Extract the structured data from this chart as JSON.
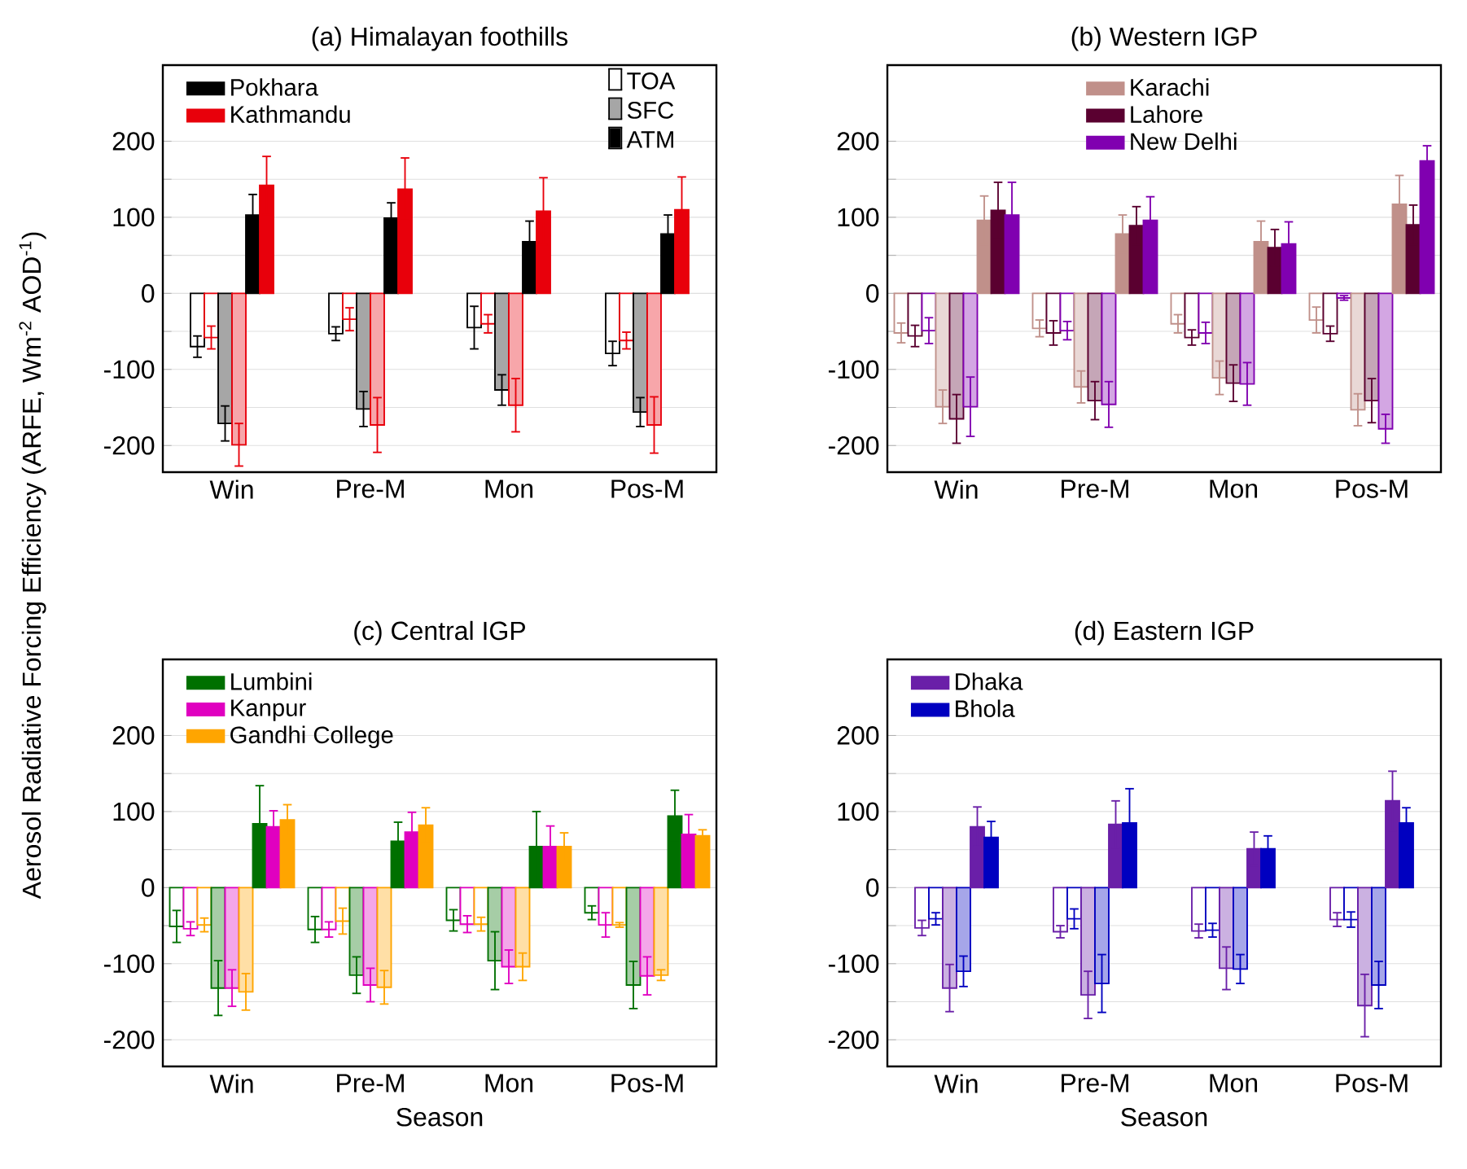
{
  "chart_data": [
    {
      "type": "bar",
      "title": "(a) Himalayan foothills",
      "ylabel": "Aerosol Radiative Forcing Efficiency (ARFE, Wm$^{-2}$ AOD$^{-1}$)",
      "categories": [
        "Win",
        "Pre-M",
        "Mon",
        "Pos-M"
      ],
      "ylim": [
        -235,
        300
      ],
      "yticks": [
        -200,
        {
          "value": -150,
          "label": null
        },
        -100,
        {
          "value": -50,
          "label": null
        },
        0,
        {
          "value": 50,
          "label": null
        },
        100,
        {
          "value": 150,
          "label": null
        },
        200
      ],
      "grid": true,
      "legend": "top left",
      "annotations": [
        "TOA",
        "SFC",
        "ATM"
      ],
      "series": [
        {
          "color": "#000000",
          "values": [
            -70,
            -53,
            -45,
            -79
          ],
          "errors": [
            14,
            9,
            28,
            16
          ]
        },
        {
          "color": "#e8000b",
          "values": [
            -58,
            -34,
            -40,
            -62
          ],
          "errors": [
            15,
            15,
            12,
            11
          ]
        },
        {
          "color": "#000000",
          "values": [
            -171,
            -152,
            -127,
            -156
          ],
          "errors": [
            23,
            23,
            20,
            19
          ]
        },
        {
          "color": "#e8000b",
          "values": [
            -199,
            -173,
            -147,
            -173
          ],
          "errors": [
            28,
            36,
            35,
            37
          ]
        },
        {
          "name": "Pokhara",
          "color": "#000000",
          "values": [
            103,
            99,
            68,
            78
          ],
          "errors": [
            27,
            20,
            27,
            25
          ]
        },
        {
          "name": "Kathmandu",
          "color": "#e8000b",
          "values": [
            142,
            137,
            108,
            110
          ],
          "errors": [
            38,
            41,
            44,
            43
          ]
        }
      ]
    },
    {
      "type": "bar",
      "title": "(b) Western IGP",
      "categories": [
        "Win",
        "Pre-M",
        "Mon",
        "Pos-M"
      ],
      "ylim": [
        -235,
        300
      ],
      "yticks": [
        -200,
        {
          "value": -150,
          "label": null
        },
        -100,
        {
          "value": -50,
          "label": null
        },
        0,
        {
          "value": 50,
          "label": null
        },
        100,
        {
          "value": 150,
          "label": null
        },
        200
      ],
      "grid": true,
      "legend": "top",
      "series": [
        {
          "color": "#c0908a",
          "values": [
            -52,
            -46,
            -40,
            -35
          ],
          "errors": [
            13,
            11,
            12,
            17
          ]
        },
        {
          "color": "#5a0030",
          "values": [
            -56,
            -52,
            -58,
            -53
          ],
          "errors": [
            14,
            16,
            10,
            10
          ]
        },
        {
          "color": "#8000b0",
          "values": [
            -49,
            -49,
            -52,
            -6
          ],
          "errors": [
            17,
            12,
            14,
            3
          ]
        },
        {
          "color": "#c0908a",
          "values": [
            -149,
            -123,
            -111,
            -153
          ],
          "errors": [
            22,
            21,
            22,
            21
          ]
        },
        {
          "color": "#5a0030",
          "values": [
            -165,
            -141,
            -118,
            -141
          ],
          "errors": [
            32,
            25,
            24,
            29
          ]
        },
        {
          "color": "#8000b0",
          "values": [
            -149,
            -146,
            -119,
            -178
          ],
          "errors": [
            39,
            30,
            28,
            19
          ]
        },
        {
          "name": "Karachi",
          "color": "#c0908a",
          "values": [
            96,
            78,
            68,
            117
          ],
          "errors": [
            32,
            25,
            27,
            38
          ]
        },
        {
          "name": "Lahore",
          "color": "#5a0030",
          "values": [
            109,
            89,
            60,
            90
          ],
          "errors": [
            37,
            25,
            24,
            26
          ]
        },
        {
          "name": "New Delhi",
          "color": "#8000b0",
          "values": [
            103,
            96,
            65,
            174
          ],
          "errors": [
            43,
            31,
            29,
            20
          ]
        }
      ]
    },
    {
      "type": "bar",
      "title": "(c) Central IGP",
      "xlabel": "Season",
      "categories": [
        "Win",
        "Pre-M",
        "Mon",
        "Pos-M"
      ],
      "ylim": [
        -235,
        300
      ],
      "yticks": [
        -200,
        {
          "value": -150,
          "label": null
        },
        -100,
        {
          "value": -50,
          "label": null
        },
        0,
        {
          "value": 50,
          "label": null
        },
        100,
        {
          "value": 150,
          "label": null
        },
        200
      ],
      "grid": true,
      "legend": "top left",
      "series": [
        {
          "color": "#007000",
          "values": [
            -51,
            -55,
            -43,
            -33
          ],
          "errors": [
            21,
            17,
            14,
            9
          ]
        },
        {
          "color": "#e000c0",
          "values": [
            -54,
            -55,
            -48,
            -49
          ],
          "errors": [
            9,
            10,
            11,
            16
          ]
        },
        {
          "color": "#ffa500",
          "values": [
            -49,
            -44,
            -48,
            -49
          ],
          "errors": [
            9,
            17,
            9,
            3
          ]
        },
        {
          "color": "#007000",
          "values": [
            -132,
            -115,
            -96,
            -128
          ],
          "errors": [
            36,
            24,
            38,
            31
          ]
        },
        {
          "color": "#e000c0",
          "values": [
            -132,
            -128,
            -104,
            -116
          ],
          "errors": [
            24,
            22,
            22,
            25
          ]
        },
        {
          "color": "#ffa500",
          "values": [
            -137,
            -131,
            -104,
            -115
          ],
          "errors": [
            24,
            22,
            18,
            7
          ]
        },
        {
          "name": "Lumbini",
          "color": "#007000",
          "values": [
            84,
            61,
            54,
            94
          ],
          "errors": [
            50,
            25,
            46,
            34
          ]
        },
        {
          "name": "Kanpur",
          "color": "#e000c0",
          "values": [
            80,
            73,
            54,
            70
          ],
          "errors": [
            21,
            26,
            27,
            26
          ]
        },
        {
          "name": "Gandhi College",
          "color": "#ffa500",
          "values": [
            89,
            82,
            54,
            68
          ],
          "errors": [
            20,
            23,
            18,
            8
          ]
        }
      ]
    },
    {
      "type": "bar",
      "title": "(d) Eastern IGP",
      "xlabel": "Season",
      "categories": [
        "Win",
        "Pre-M",
        "Mon",
        "Pos-M"
      ],
      "ylim": [
        -235,
        300
      ],
      "yticks": [
        -200,
        {
          "value": -150,
          "label": null
        },
        -100,
        {
          "value": -50,
          "label": null
        },
        0,
        {
          "value": 50,
          "label": null
        },
        100,
        {
          "value": 150,
          "label": null
        },
        200
      ],
      "grid": true,
      "legend": "top left",
      "series": [
        {
          "color": "#6a1fa8",
          "values": [
            -53,
            -58,
            -57,
            -42
          ],
          "errors": [
            10,
            8,
            9,
            9
          ]
        },
        {
          "color": "#0000c0",
          "values": [
            -41,
            -41,
            -56,
            -42
          ],
          "errors": [
            8,
            13,
            9,
            10
          ]
        },
        {
          "color": "#6a1fa8",
          "values": [
            -132,
            -141,
            -106,
            -155
          ],
          "errors": [
            31,
            31,
            28,
            41
          ]
        },
        {
          "color": "#0000c0",
          "values": [
            -110,
            -126,
            -107,
            -128
          ],
          "errors": [
            20,
            38,
            19,
            31
          ]
        },
        {
          "name": "Dhaka",
          "color": "#6a1fa8",
          "values": [
            80,
            83,
            51,
            114
          ],
          "errors": [
            26,
            31,
            22,
            39
          ]
        },
        {
          "name": "Bhola",
          "color": "#0000c0",
          "values": [
            66,
            85,
            51,
            85
          ],
          "errors": [
            21,
            45,
            17,
            20
          ]
        }
      ]
    }
  ]
}
